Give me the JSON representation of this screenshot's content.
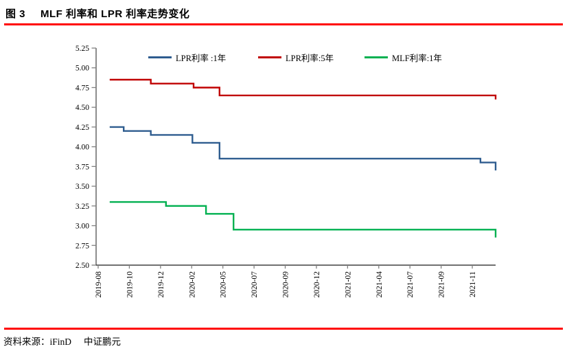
{
  "header": {
    "figure_label": "图 3",
    "title": "MLF 利率和 LPR 利率走势变化"
  },
  "footer": {
    "source": "资料来源：iFinD",
    "org": "中证鹏元"
  },
  "accent": {
    "rule_color": "#FF0000"
  },
  "chart_data": {
    "type": "line",
    "line_style": "step",
    "title": "MLF 利率和 LPR 利率走势变化",
    "grid": false,
    "legend_position": "top",
    "y_axis": {
      "min": 2.5,
      "max": 5.25,
      "step": 0.25,
      "tick_labels": [
        "5.25",
        "5.00",
        "4.75",
        "4.50",
        "4.25",
        "4.00",
        "3.75",
        "3.50",
        "3.25",
        "3.00",
        "2.75",
        "2.50"
      ]
    },
    "x_axis": {
      "tick_labels": [
        "2019-08",
        "2019-10",
        "2019-12",
        "2020-02",
        "2020-05",
        "2020-07",
        "2020-09",
        "2020-12",
        "2021-02",
        "2021-04",
        "2021-07",
        "2021-09",
        "2021-11"
      ]
    },
    "axis_colors": {
      "y_axis": "#808080",
      "x_axis": "#1a1a1a",
      "ticks": "#808080"
    },
    "series": [
      {
        "name": "LPR利率 :1年",
        "color": "#2E5C8F",
        "points": [
          {
            "date": "2019-08",
            "frac": 0.034,
            "value": 4.25
          },
          {
            "date": "2019-09",
            "frac": 0.069,
            "value": 4.2
          },
          {
            "date": "2019-11",
            "frac": 0.137,
            "value": 4.15
          },
          {
            "date": "2020-02",
            "frac": 0.241,
            "value": 4.05
          },
          {
            "date": "2020-04",
            "frac": 0.309,
            "value": 3.85
          },
          {
            "date": "2021-12",
            "frac": 0.962,
            "value": 3.8
          },
          {
            "date": "2022-01",
            "frac": 1.0,
            "value": 3.7
          }
        ]
      },
      {
        "name": "LPR利率:5年",
        "color": "#C00000",
        "points": [
          {
            "date": "2019-08",
            "frac": 0.034,
            "value": 4.85
          },
          {
            "date": "2019-11",
            "frac": 0.137,
            "value": 4.8
          },
          {
            "date": "2020-02",
            "frac": 0.244,
            "value": 4.75
          },
          {
            "date": "2020-04",
            "frac": 0.309,
            "value": 4.65
          },
          {
            "date": "2022-01",
            "frac": 1.0,
            "value": 4.6
          }
        ]
      },
      {
        "name": "MLF利率:1年",
        "color": "#00B050",
        "points": [
          {
            "date": "2019-08",
            "frac": 0.034,
            "value": 3.3
          },
          {
            "date": "2019-11",
            "frac": 0.175,
            "value": 3.25
          },
          {
            "date": "2020-02",
            "frac": 0.275,
            "value": 3.15
          },
          {
            "date": "2020-04",
            "frac": 0.344,
            "value": 2.95
          },
          {
            "date": "2022-01",
            "frac": 1.0,
            "value": 2.85
          }
        ]
      }
    ]
  }
}
